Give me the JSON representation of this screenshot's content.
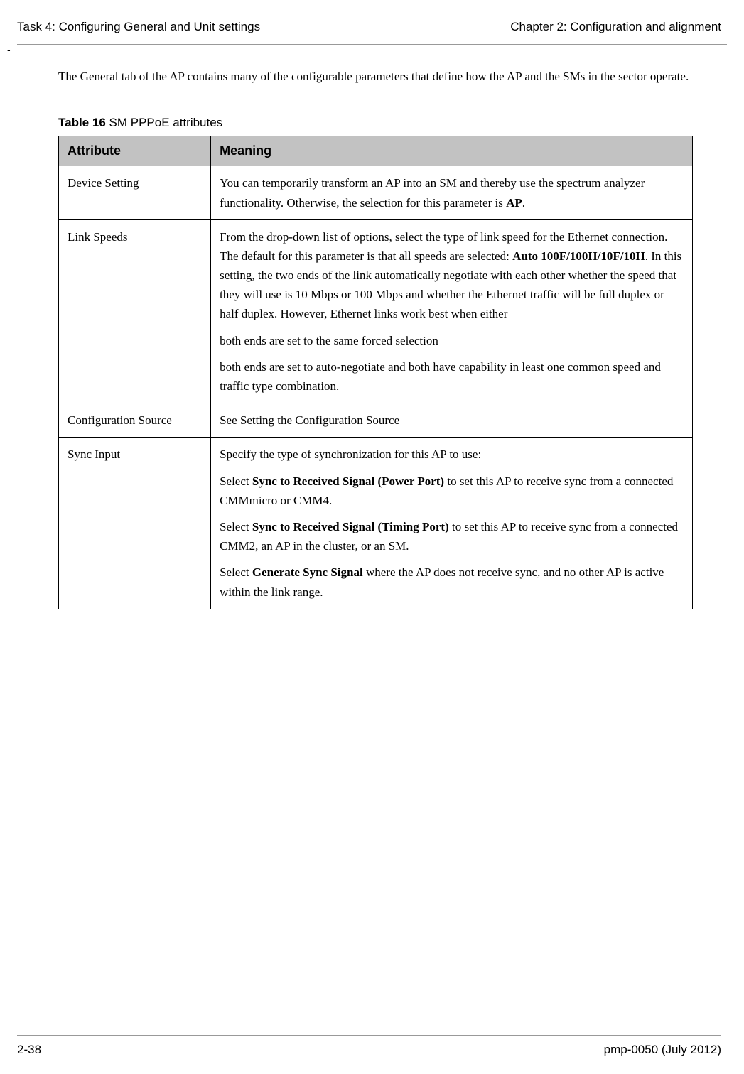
{
  "header": {
    "left": "Task 4: Configuring General and Unit settings",
    "right": "Chapter 2:  Configuration and alignment"
  },
  "dash": "-",
  "intro": "The General tab of the AP contains many of the configurable parameters that define how the AP and the SMs in the sector operate.",
  "table": {
    "caption_label": "Table 16",
    "caption_text": "  SM PPPoE attributes",
    "head_attr": "Attribute",
    "head_mean": "Meaning",
    "rows": {
      "r0": {
        "attr": "Device Setting",
        "p0_a": "You can temporarily transform an AP into an SM and thereby use the spectrum analyzer functionality. Otherwise, the selection for this parameter is ",
        "p0_b": "AP",
        "p0_c": "."
      },
      "r1": {
        "attr": "Link Speeds",
        "p0_a": "From the drop-down list of options, select the type of link speed for the Ethernet connection. The default for this parameter is that all speeds are selected: ",
        "p0_b": "Auto 100F/100H/10F/10H",
        "p0_c": ". In this setting, the two ends of the link automatically negotiate with each other whether the speed that they will use is 10 Mbps or 100 Mbps and whether the Ethernet traffic will be full duplex or half duplex. However, Ethernet links work best when either",
        "p1": "both ends are set to the same forced selection",
        "p2": "both ends are set to auto-negotiate and both have capability in least one common speed and traffic type combination."
      },
      "r2": {
        "attr": "Configuration Source",
        "p0": "See Setting the Configuration Source"
      },
      "r3": {
        "attr": "Sync Input",
        "p0": "Specify the type of synchronization for this AP to use:",
        "p1_a": "Select ",
        "p1_b": "Sync to Received Signal (Power Port)",
        "p1_c": " to set this AP to receive sync from a connected CMMmicro or CMM4.",
        "p2_a": "Select ",
        "p2_b": "Sync to Received Signal (Timing Port)",
        "p2_c": " to set this AP to receive sync from a connected CMM2, an AP in the cluster, or an SM.",
        "p3_a": "Select ",
        "p3_b": "Generate Sync Signal",
        "p3_c": " where the AP does not receive sync, and no other AP is active within the link range."
      }
    }
  },
  "footer": {
    "left": "2-38",
    "right": "pmp-0050 (July 2012)"
  }
}
